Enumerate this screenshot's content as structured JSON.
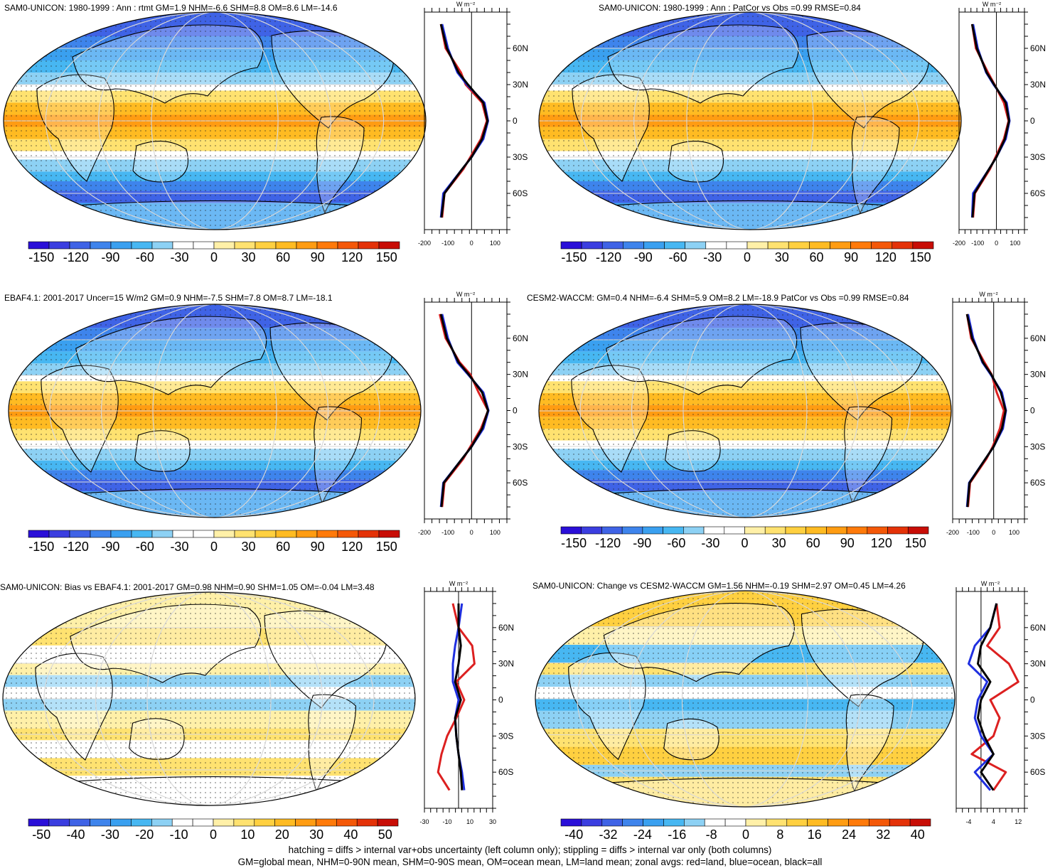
{
  "colors": {
    "cold": [
      "#2a0fd8",
      "#3b3ee0",
      "#3f63e6",
      "#3e84ec",
      "#3aa0f0",
      "#47b7f2",
      "#8dd1f4"
    ],
    "white": "#ffffff",
    "warm": [
      "#fff0a8",
      "#ffe270",
      "#ffd040",
      "#ffbb22",
      "#ff9c12",
      "#ff7a0a",
      "#f45808",
      "#e43208",
      "#c80d06"
    ],
    "land": "#dc2020",
    "ocean": "#1f2fe0",
    "all": "#000000"
  },
  "panels": [
    {
      "id": "p1",
      "title": "SAM0-UNICON: 1980-1999 : Ann : rtmt GM=1.9 NHM=-6.6 SHM=8.8 OM=8.6 LM=-14.6",
      "colorbar_ticks": [
        "-150",
        "-120",
        "-90",
        "-60",
        "-30",
        "0",
        "30",
        "60",
        "90",
        "120",
        "150"
      ],
      "zonal": {
        "unit": "W m⁻²",
        "xticks": [
          "-200",
          "-100",
          "0",
          "100"
        ],
        "yticks": [
          "60N",
          "30N",
          "0",
          "30S",
          "60S"
        ]
      }
    },
    {
      "id": "p2",
      "title": "SAM0-UNICON: 1980-1999 : Ann : PatCor vs Obs =0.99 RMSE=0.84",
      "colorbar_ticks": [
        "-150",
        "-120",
        "-90",
        "-60",
        "-30",
        "0",
        "30",
        "60",
        "90",
        "120",
        "150"
      ],
      "zonal": {
        "unit": "W m⁻²",
        "xticks": [
          "-200",
          "-100",
          "0",
          "100"
        ],
        "yticks": [
          "60N",
          "30N",
          "0",
          "30S",
          "60S"
        ]
      }
    },
    {
      "id": "p3",
      "title": "EBAF4.1: 2001-2017 Uncer=15 W/m2 GM=0.9 NHM=-7.5 SHM=7.8 OM=8.7 LM=-18.1",
      "colorbar_ticks": [
        "-150",
        "-120",
        "-90",
        "-60",
        "-30",
        "0",
        "30",
        "60",
        "90",
        "120",
        "150"
      ],
      "zonal": {
        "unit": "W m⁻²",
        "xticks": [
          "-200",
          "-100",
          "0",
          "100"
        ],
        "yticks": [
          "60N",
          "30N",
          "0",
          "30S",
          "60S"
        ]
      }
    },
    {
      "id": "p4",
      "title": "CESM2-WACCM: GM=0.4 NHM=-6.4 SHM=5.9 OM=8.2 LM=-18.9 PatCor vs Obs =0.99 RMSE=0.84",
      "colorbar_ticks": [
        "-150",
        "-120",
        "-90",
        "-60",
        "-30",
        "0",
        "30",
        "60",
        "90",
        "120",
        "150"
      ],
      "zonal": {
        "unit": "W m⁻²",
        "xticks": [
          "-200",
          "-100",
          "0",
          "100"
        ],
        "yticks": [
          "60N",
          "30N",
          "0",
          "30S",
          "60S"
        ]
      }
    },
    {
      "id": "p5",
      "title": "SAM0-UNICON: Bias vs EBAF4.1: 2001-2017 GM=0.98 NHM=0.90 SHM=1.05 OM=-0.04 LM=3.48",
      "colorbar_ticks": [
        "-50",
        "-40",
        "-30",
        "-20",
        "-10",
        "0",
        "10",
        "20",
        "30",
        "40",
        "50"
      ],
      "zonal": {
        "unit": "W m⁻²",
        "xticks": [
          "-30",
          "-10",
          "10",
          "30"
        ],
        "yticks": [
          "60N",
          "30N",
          "0",
          "30S",
          "60S"
        ]
      }
    },
    {
      "id": "p6",
      "title": "SAM0-UNICON: Change vs CESM2-WACCM GM=1.56 NHM=-0.19 SHM=2.97 OM=0.45 LM=4.26",
      "colorbar_ticks": [
        "-40",
        "-32",
        "-24",
        "-16",
        "-8",
        "0",
        "8",
        "16",
        "24",
        "32",
        "40"
      ],
      "zonal": {
        "unit": "W m⁻²",
        "xticks": [
          "-4",
          "4",
          "12"
        ],
        "yticks": [
          "60N",
          "30N",
          "0",
          "30S",
          "60S"
        ]
      }
    }
  ],
  "footer": {
    "line1": "hatching = diffs > internal var+obs uncertainty (left column only); stippling = diffs > internal var only (both columns)",
    "line2": "GM=global mean, NHM=0-90N mean, SHM=0-90S mean, OM=ocean mean, LM=land mean; zonal avgs: red=land, blue=ocean, black=all"
  },
  "chart_data": [
    {
      "type": "heatmap",
      "title": "SAM0-UNICON: 1980-1999 : Ann : rtmt GM=1.9 NHM=-6.6 SHM=8.8 OM=8.6 LM=-14.6",
      "colorbar": [
        -150,
        -120,
        -90,
        -60,
        -30,
        0,
        30,
        60,
        90,
        120,
        150
      ],
      "zonal_lat": [
        80,
        60,
        40,
        30,
        15,
        0,
        -15,
        -30,
        -40,
        -60,
        -80
      ],
      "zonal_series": [
        {
          "name": "land",
          "values": [
            -130,
            -110,
            -45,
            -25,
            45,
            65,
            40,
            -5,
            -35,
            -115,
            -125
          ]
        },
        {
          "name": "ocean",
          "values": [
            -125,
            -100,
            -60,
            -20,
            55,
            70,
            50,
            0,
            -40,
            -120,
            -130
          ]
        },
        {
          "name": "all",
          "values": [
            -130,
            -105,
            -55,
            -15,
            50,
            68,
            45,
            0,
            -40,
            -115,
            -128
          ]
        }
      ],
      "zonal_xlim": [
        -200,
        150
      ]
    },
    {
      "type": "heatmap",
      "title": "SAM0-UNICON: 1980-1999 : Ann : PatCor vs Obs =0.99 RMSE=0.84",
      "colorbar": [
        -150,
        -120,
        -90,
        -60,
        -30,
        0,
        30,
        60,
        90,
        120,
        150
      ],
      "zonal_lat": [
        80,
        60,
        40,
        30,
        15,
        0,
        -15,
        -30,
        -40,
        -60,
        -80
      ],
      "zonal_series": [
        {
          "name": "land",
          "values": [
            -130,
            -110,
            -45,
            -10,
            40,
            65,
            40,
            -5,
            -35,
            -115,
            -125
          ]
        },
        {
          "name": "ocean",
          "values": [
            -125,
            -100,
            -55,
            -15,
            55,
            70,
            50,
            0,
            -40,
            -125,
            -130
          ]
        },
        {
          "name": "all",
          "values": [
            -130,
            -105,
            -52,
            -12,
            50,
            68,
            45,
            0,
            -40,
            -118,
            -128
          ]
        }
      ],
      "zonal_xlim": [
        -200,
        150
      ]
    },
    {
      "type": "heatmap",
      "title": "EBAF4.1: 2001-2017 Uncer=15 W/m2 GM=0.9 NHM=-7.5 SHM=7.8 OM=8.7 LM=-18.1",
      "colorbar": [
        -150,
        -120,
        -90,
        -60,
        -30,
        0,
        30,
        60,
        90,
        120,
        150
      ],
      "zonal_lat": [
        80,
        60,
        40,
        30,
        15,
        0,
        -15,
        -30,
        -40,
        -60,
        -80
      ],
      "zonal_series": [
        {
          "name": "land",
          "values": [
            -135,
            -110,
            -50,
            -5,
            30,
            70,
            40,
            -5,
            -35,
            -115,
            -125
          ]
        },
        {
          "name": "ocean",
          "values": [
            -125,
            -100,
            -60,
            -15,
            50,
            72,
            50,
            0,
            -40,
            -120,
            -130
          ]
        },
        {
          "name": "all",
          "values": [
            -130,
            -105,
            -55,
            -12,
            45,
            70,
            45,
            0,
            -40,
            -118,
            -128
          ]
        }
      ],
      "zonal_xlim": [
        -200,
        150
      ]
    },
    {
      "type": "heatmap",
      "title": "CESM2-WACCM: GM=0.4 NHM=-6.4 SHM=5.9 OM=8.2 LM=-18.9 PatCor vs Obs =0.99 RMSE=0.84",
      "colorbar": [
        -150,
        -120,
        -90,
        -60,
        -30,
        0,
        30,
        60,
        90,
        120,
        150
      ],
      "zonal_lat": [
        80,
        60,
        40,
        30,
        15,
        0,
        -15,
        -30,
        -40,
        -60,
        -80
      ],
      "zonal_series": [
        {
          "name": "land",
          "values": [
            -130,
            -110,
            -45,
            -10,
            15,
            50,
            30,
            -5,
            -35,
            -115,
            -125
          ]
        },
        {
          "name": "ocean",
          "values": [
            -125,
            -100,
            -55,
            -15,
            40,
            60,
            45,
            0,
            -40,
            -120,
            -130
          ]
        },
        {
          "name": "all",
          "values": [
            -130,
            -105,
            -52,
            -12,
            35,
            58,
            40,
            0,
            -40,
            -118,
            -128
          ]
        }
      ],
      "zonal_xlim": [
        -200,
        150
      ]
    },
    {
      "type": "heatmap",
      "title": "SAM0-UNICON: Bias vs EBAF4.1: 2001-2017 GM=0.98 NHM=0.90 SHM=1.05 OM=-0.04 LM=3.48",
      "colorbar": [
        -50,
        -40,
        -30,
        -20,
        -10,
        0,
        10,
        20,
        30,
        40,
        50
      ],
      "zonal_lat": [
        80,
        60,
        45,
        30,
        15,
        0,
        -15,
        -30,
        -45,
        -60,
        -75
      ],
      "zonal_series": [
        {
          "name": "land",
          "values": [
            -5,
            0,
            12,
            14,
            -2,
            5,
            -2,
            -10,
            -15,
            -18,
            -8
          ]
        },
        {
          "name": "ocean",
          "values": [
            3,
            0,
            -3,
            -5,
            -5,
            0,
            -3,
            -2,
            0,
            3,
            5
          ]
        },
        {
          "name": "all",
          "values": [
            0,
            0,
            2,
            0,
            -3,
            2,
            -3,
            -2,
            0,
            2,
            3
          ]
        }
      ],
      "zonal_xlim": [
        -30,
        30
      ]
    },
    {
      "type": "heatmap",
      "title": "SAM0-UNICON: Change vs CESM2-WACCM GM=1.56 NHM=-0.19 SHM=2.97 OM=0.45 LM=4.26",
      "colorbar": [
        -40,
        -32,
        -24,
        -16,
        -8,
        0,
        8,
        16,
        24,
        32,
        40
      ],
      "zonal_lat": [
        80,
        60,
        45,
        30,
        15,
        0,
        -15,
        -30,
        -45,
        -60,
        -75
      ],
      "zonal_series": [
        {
          "name": "land",
          "values": [
            5,
            6,
            2,
            9,
            12,
            3,
            6,
            4,
            -3,
            8,
            4
          ]
        },
        {
          "name": "ocean",
          "values": [
            5,
            3,
            -2,
            -4,
            2,
            -1,
            -2,
            0,
            4,
            -2,
            3
          ]
        },
        {
          "name": "all",
          "values": [
            5,
            3,
            0,
            -1,
            3,
            0,
            -1,
            1,
            4,
            0,
            4
          ]
        }
      ],
      "zonal_xlim": [
        -8,
        14
      ]
    }
  ]
}
